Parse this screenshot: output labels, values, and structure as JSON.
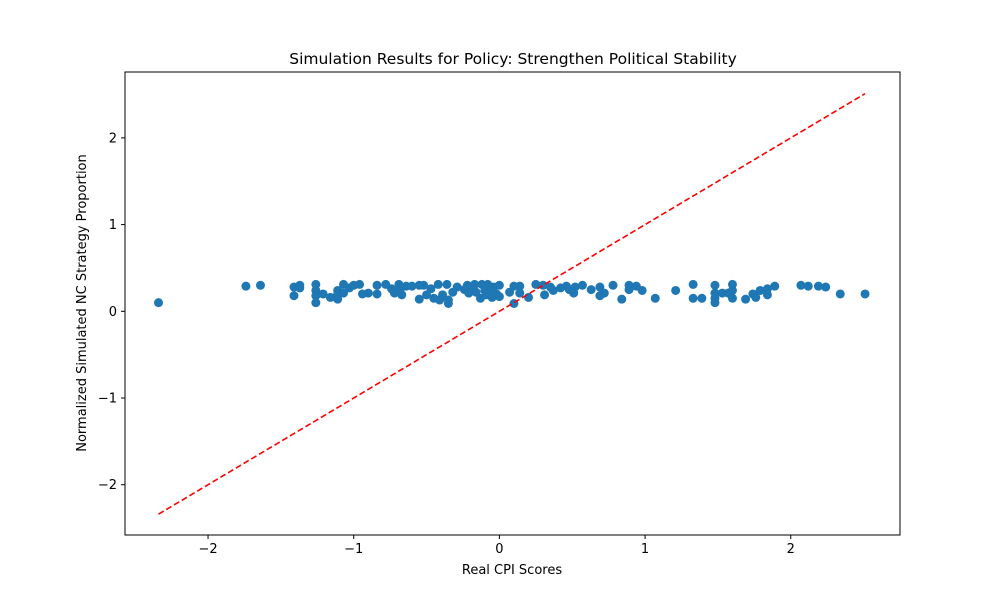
{
  "chart_data": {
    "type": "scatter",
    "title": "Simulation Results for Policy: Strengthen Political Stability",
    "xlabel": "Real CPI Scores",
    "ylabel": "Normalized Simulated NC Strategy Proportion",
    "xlim": [
      -2.57,
      2.75
    ],
    "ylim": [
      -2.58,
      2.76
    ],
    "x_ticks": [
      -2,
      -1,
      0,
      1,
      2
    ],
    "x_tick_labels": [
      "−2",
      "−1",
      "0",
      "1",
      "2"
    ],
    "y_ticks": [
      -2,
      -1,
      0,
      1,
      2
    ],
    "y_tick_labels": [
      "−2",
      "−1",
      "0",
      "1",
      "2"
    ],
    "grid": false,
    "legend": null,
    "series": [
      {
        "marker": "circle",
        "color": "#1f77b4",
        "points": [
          [
            -2.34,
            0.1
          ],
          [
            -1.74,
            0.29
          ],
          [
            -1.64,
            0.3
          ],
          [
            -1.41,
            0.28
          ],
          [
            -1.41,
            0.18
          ],
          [
            -1.37,
            0.3
          ],
          [
            -1.37,
            0.27
          ],
          [
            -1.26,
            0.31
          ],
          [
            -1.26,
            0.24
          ],
          [
            -1.26,
            0.18
          ],
          [
            -1.26,
            0.1
          ],
          [
            -1.21,
            0.2
          ],
          [
            -1.16,
            0.16
          ],
          [
            -1.11,
            0.24
          ],
          [
            -1.11,
            0.2
          ],
          [
            -1.11,
            0.14
          ],
          [
            -1.07,
            0.31
          ],
          [
            -1.07,
            0.21
          ],
          [
            -1.03,
            0.27
          ],
          [
            -1.0,
            0.3
          ],
          [
            -0.96,
            0.31
          ],
          [
            -0.94,
            0.2
          ],
          [
            -0.9,
            0.21
          ],
          [
            -0.84,
            0.3
          ],
          [
            -0.84,
            0.2
          ],
          [
            -0.78,
            0.31
          ],
          [
            -0.74,
            0.26
          ],
          [
            -0.72,
            0.21
          ],
          [
            -0.69,
            0.31
          ],
          [
            -0.68,
            0.26
          ],
          [
            -0.67,
            0.19
          ],
          [
            -0.64,
            0.29
          ],
          [
            -0.6,
            0.29
          ],
          [
            -0.55,
            0.3
          ],
          [
            -0.55,
            0.14
          ],
          [
            -0.52,
            0.3
          ],
          [
            -0.5,
            0.19
          ],
          [
            -0.47,
            0.26
          ],
          [
            -0.45,
            0.15
          ],
          [
            -0.42,
            0.31
          ],
          [
            -0.41,
            0.13
          ],
          [
            -0.39,
            0.19
          ],
          [
            -0.36,
            0.31
          ],
          [
            -0.35,
            0.13
          ],
          [
            -0.35,
            0.09
          ],
          [
            -0.32,
            0.22
          ],
          [
            -0.29,
            0.28
          ],
          [
            -0.24,
            0.25
          ],
          [
            -0.22,
            0.3
          ],
          [
            -0.21,
            0.21
          ],
          [
            -0.19,
            0.27
          ],
          [
            -0.17,
            0.31
          ],
          [
            -0.16,
            0.22
          ],
          [
            -0.13,
            0.15
          ],
          [
            -0.12,
            0.31
          ],
          [
            -0.1,
            0.24
          ],
          [
            -0.09,
            0.19
          ],
          [
            -0.08,
            0.31
          ],
          [
            -0.07,
            0.22
          ],
          [
            -0.05,
            0.16
          ],
          [
            -0.04,
            0.28
          ],
          [
            -0.02,
            0.2
          ],
          [
            0.0,
            0.3
          ],
          [
            0.0,
            0.17
          ],
          [
            0.07,
            0.22
          ],
          [
            0.1,
            0.29
          ],
          [
            0.1,
            0.09
          ],
          [
            0.14,
            0.29
          ],
          [
            0.14,
            0.21
          ],
          [
            0.2,
            0.16
          ],
          [
            0.25,
            0.31
          ],
          [
            0.3,
            0.3
          ],
          [
            0.31,
            0.19
          ],
          [
            0.35,
            0.28
          ],
          [
            0.37,
            0.24
          ],
          [
            0.42,
            0.27
          ],
          [
            0.46,
            0.29
          ],
          [
            0.48,
            0.25
          ],
          [
            0.51,
            0.21
          ],
          [
            0.52,
            0.28
          ],
          [
            0.57,
            0.3
          ],
          [
            0.63,
            0.25
          ],
          [
            0.69,
            0.28
          ],
          [
            0.69,
            0.18
          ],
          [
            0.72,
            0.21
          ],
          [
            0.78,
            0.3
          ],
          [
            0.84,
            0.14
          ],
          [
            0.89,
            0.3
          ],
          [
            0.89,
            0.25
          ],
          [
            0.94,
            0.29
          ],
          [
            0.98,
            0.24
          ],
          [
            1.07,
            0.15
          ],
          [
            1.21,
            0.24
          ],
          [
            1.33,
            0.31
          ],
          [
            1.33,
            0.15
          ],
          [
            1.39,
            0.15
          ],
          [
            1.48,
            0.3
          ],
          [
            1.48,
            0.21
          ],
          [
            1.48,
            0.15
          ],
          [
            1.48,
            0.1
          ],
          [
            1.53,
            0.21
          ],
          [
            1.57,
            0.21
          ],
          [
            1.6,
            0.31
          ],
          [
            1.6,
            0.24
          ],
          [
            1.6,
            0.15
          ],
          [
            1.69,
            0.14
          ],
          [
            1.74,
            0.2
          ],
          [
            1.76,
            0.16
          ],
          [
            1.79,
            0.24
          ],
          [
            1.84,
            0.26
          ],
          [
            1.84,
            0.19
          ],
          [
            1.89,
            0.29
          ],
          [
            2.07,
            0.3
          ],
          [
            2.12,
            0.29
          ],
          [
            2.19,
            0.29
          ],
          [
            2.24,
            0.28
          ],
          [
            2.34,
            0.2
          ],
          [
            2.51,
            0.2
          ]
        ]
      }
    ],
    "reference_line": {
      "style": "dashed",
      "color": "#ff0000",
      "from": [
        -2.34,
        -2.34
      ],
      "to": [
        2.51,
        2.51
      ]
    }
  }
}
